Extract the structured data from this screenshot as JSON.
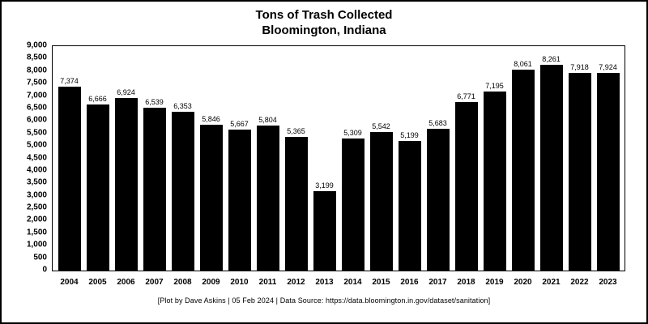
{
  "title": {
    "line1": "Tons of Trash Collected",
    "line2": "Bloomington, Indiana"
  },
  "footer": "[Plot by Dave Askins | 05 Feb 2024 | Data Source: https://data.bloomington.in.gov/dataset/sanitation]",
  "chart_data": {
    "type": "bar",
    "title": "Tons of Trash Collected Bloomington, Indiana",
    "categories": [
      "2004",
      "2005",
      "2006",
      "2007",
      "2008",
      "2009",
      "2010",
      "2011",
      "2012",
      "2013",
      "2014",
      "2015",
      "2016",
      "2017",
      "2018",
      "2019",
      "2020",
      "2021",
      "2022",
      "2023"
    ],
    "values": [
      7374,
      6666,
      6924,
      6539,
      6353,
      5846,
      5667,
      5804,
      5365,
      3199,
      5309,
      5542,
      5199,
      5683,
      6771,
      7195,
      8061,
      8261,
      7918,
      7924
    ],
    "value_labels": [
      "7,374",
      "6,666",
      "6,924",
      "6,539",
      "6,353",
      "5,846",
      "5,667",
      "5,804",
      "5,365",
      "3,199",
      "5,309",
      "5,542",
      "5,199",
      "5,683",
      "6,771",
      "7,195",
      "8,061",
      "8,261",
      "7,918",
      "7,924"
    ],
    "xlabel": "",
    "ylabel": "",
    "ylim": [
      0,
      9000
    ],
    "ytick_step": 500,
    "bar_color": "#000000",
    "grid": false,
    "legend": false
  }
}
